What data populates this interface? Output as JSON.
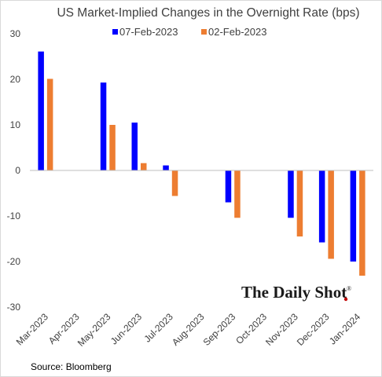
{
  "chart_data": {
    "type": "bar",
    "title": "US Market-Implied Changes in the Overnight Rate (bps)",
    "categories": [
      "Mar-2023",
      "Apr-2023",
      "May-2023",
      "Jun-2023",
      "Jul-2023",
      "Aug-2023",
      "Sep-2023",
      "Oct-2023",
      "Nov-2023",
      "Dec-2023",
      "Jan-2024"
    ],
    "series": [
      {
        "name": "07-Feb-2023",
        "color": "#0000ff",
        "values": [
          26.1,
          null,
          19.3,
          10.5,
          1.1,
          null,
          -7.0,
          null,
          -10.4,
          -15.8,
          -20.0
        ]
      },
      {
        "name": "02-Feb-2023",
        "color": "#ed7d31",
        "values": [
          20.1,
          null,
          10.0,
          1.6,
          -5.6,
          null,
          -10.4,
          null,
          -14.5,
          -19.4,
          -23.1
        ]
      }
    ],
    "ylim": [
      -30,
      30
    ],
    "yticks": [
      -30,
      -20,
      -10,
      0,
      10,
      20,
      30
    ],
    "legend": "top",
    "grid": false,
    "source": "Source: Bloomberg",
    "watermark": "The Daily Shot",
    "watermark_mark": "®"
  }
}
